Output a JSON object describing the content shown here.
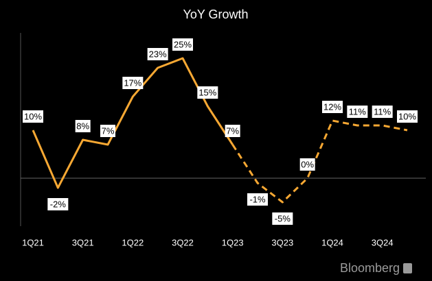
{
  "chart_data": {
    "type": "line",
    "title": "YoY Growth",
    "source": "Bloomberg",
    "categories": [
      "1Q21",
      null,
      "3Q21",
      null,
      "1Q22",
      null,
      "3Q22",
      null,
      "1Q23",
      null,
      "3Q23",
      null,
      "1Q24",
      null,
      "3Q24",
      null
    ],
    "values": [
      10,
      -2,
      8,
      7,
      17,
      23,
      25,
      15,
      7,
      -1,
      -5,
      0,
      12,
      11,
      11,
      10
    ],
    "value_labels": [
      "10%",
      "-2%",
      "8%",
      "7%",
      "17%",
      "23%",
      "25%",
      "15%",
      "7%",
      "-1%",
      "-5%",
      "0%",
      "12%",
      "11%",
      "11%",
      "10%"
    ],
    "color": "#f7a833",
    "dashed_from_index": 8,
    "ylim": [
      -10,
      30
    ]
  }
}
